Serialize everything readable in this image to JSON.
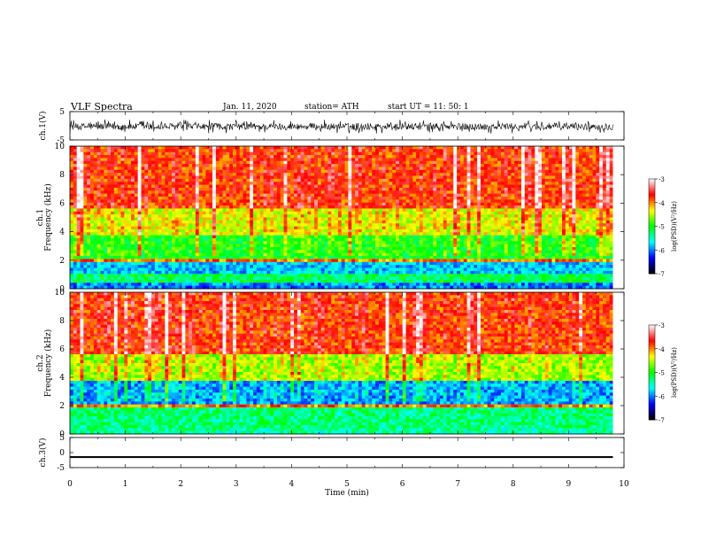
{
  "header": {
    "title": "VLF  Spectra",
    "date": "Jan. 11, 2020",
    "station": "station= ATH",
    "start": "start  UT  =    11: 50: 1"
  },
  "chart_data": [
    {
      "type": "line",
      "panel": "ch1-waveform",
      "ylabel": "ch.1(V)",
      "ylim": [
        -5,
        5
      ],
      "ytick_labels": [
        "5",
        "-5"
      ],
      "x_range_min": [
        0,
        9.8
      ],
      "trace": "dense black noise, amplitude approx -2.5 to 2.5 V"
    },
    {
      "type": "heatmap",
      "panel": "ch1-spectrogram",
      "ylabel": "ch.1\nFrequency (kHz)",
      "ylim": [
        0,
        10
      ],
      "ytick_labels": [
        "0",
        "2",
        "4",
        "6",
        "8",
        "10"
      ],
      "x_range_min": [
        0,
        9.8
      ],
      "bands_khz_log_psd": [
        {
          "f": [
            0,
            0.5
          ],
          "v": -6.0
        },
        {
          "f": [
            0.5,
            1.0
          ],
          "v": -5.2
        },
        {
          "f": [
            1.0,
            1.9
          ],
          "v": -5.8
        },
        {
          "f": [
            1.9,
            2.1
          ],
          "v": -4.0
        },
        {
          "f": [
            2.1,
            3.8
          ],
          "v": -5.0
        },
        {
          "f": [
            3.8,
            5.6
          ],
          "v": -4.4
        },
        {
          "f": [
            5.6,
            10.0
          ],
          "v": -3.8
        }
      ],
      "colorbar": {
        "label": "log(PSD)(V²/Hz)",
        "range": [
          -7,
          -3
        ],
        "tick_labels": [
          "-3",
          "-4",
          "-5",
          "-6",
          "-7"
        ]
      }
    },
    {
      "type": "heatmap",
      "panel": "ch2-spectrogram",
      "ylabel": "ch.2\nFrequency (kHz)",
      "ylim": [
        0,
        10
      ],
      "ytick_labels": [
        "0",
        "2",
        "4",
        "6",
        "8",
        "10"
      ],
      "x_range_min": [
        0,
        9.8
      ],
      "bands_khz_log_psd": [
        {
          "f": [
            0,
            0.5
          ],
          "v": -5.4
        },
        {
          "f": [
            0.5,
            1.9
          ],
          "v": -5.3
        },
        {
          "f": [
            1.9,
            2.1
          ],
          "v": -4.0
        },
        {
          "f": [
            2.1,
            3.8
          ],
          "v": -5.9
        },
        {
          "f": [
            3.8,
            5.6
          ],
          "v": -4.6
        },
        {
          "f": [
            5.6,
            10.0
          ],
          "v": -3.8
        }
      ],
      "colorbar": {
        "label": "log(PSD)(V²/Hz)",
        "range": [
          -7,
          -3
        ],
        "tick_labels": [
          "-3",
          "-4",
          "-5",
          "-6",
          "-7"
        ]
      }
    },
    {
      "type": "line",
      "panel": "ch3-waveform",
      "ylabel": "ch.3(V)",
      "ylim": [
        -5,
        5
      ],
      "ytick_labels": [
        "5",
        "0",
        "-5"
      ],
      "x_range_min": [
        0,
        9.8
      ],
      "trace": "constant near -1.5 V"
    }
  ],
  "x_axis": {
    "label": "Time  (min)",
    "range": [
      0,
      10
    ],
    "tick_labels": [
      "0",
      "1",
      "2",
      "3",
      "4",
      "5",
      "6",
      "7",
      "8",
      "9",
      "10"
    ]
  },
  "colormap": [
    "#000000",
    "#0000ff",
    "#00ffff",
    "#00ff00",
    "#ffff00",
    "#ff0000",
    "#ffffff"
  ]
}
